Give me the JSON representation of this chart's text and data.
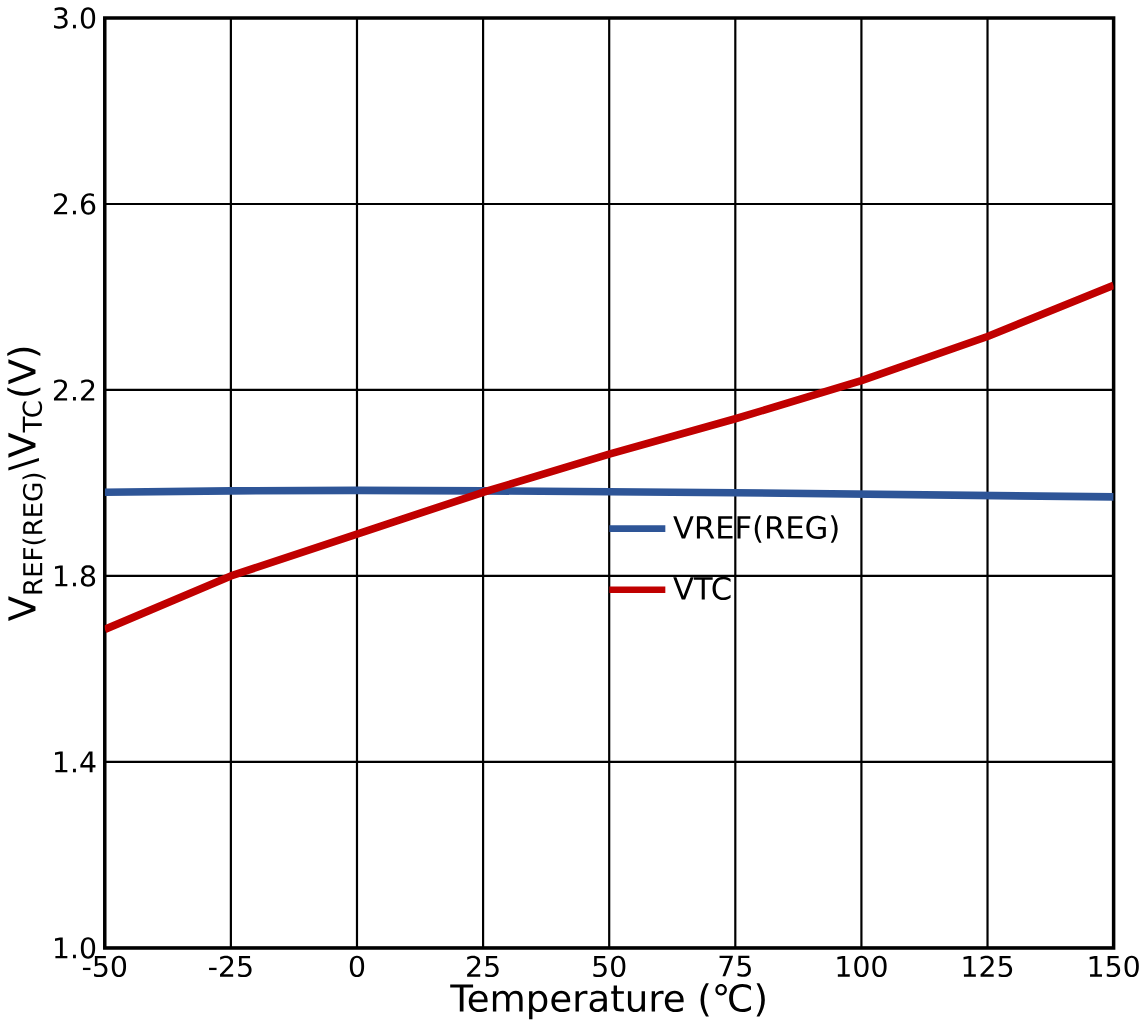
{
  "chart_data": {
    "type": "line",
    "xlabel": "Temperature (℃)",
    "ylabel": "V$_{REF(REG)}$\\V$_{TC}$(V)",
    "x": [
      -50,
      -25,
      0,
      25,
      50,
      75,
      100,
      125,
      150
    ],
    "series": [
      {
        "name": "VREF(REG)",
        "color": "#2e5597",
        "values": [
          1.98,
          1.983,
          1.984,
          1.983,
          1.981,
          1.979,
          1.976,
          1.973,
          1.97
        ]
      },
      {
        "name": "VTC",
        "color": "#c00000",
        "values": [
          1.685,
          1.8,
          1.89,
          1.98,
          2.062,
          2.138,
          2.22,
          2.315,
          2.425
        ]
      }
    ],
    "xlim": [
      -50,
      150
    ],
    "xticks": [
      -50,
      -25,
      0,
      25,
      50,
      75,
      100,
      125,
      150
    ],
    "ylim": [
      1.0,
      3.0
    ],
    "yticks": [
      {
        "value": 1.0,
        "label": "1.0"
      },
      1.4,
      1.8,
      2.2,
      2.6,
      {
        "value": 3.0,
        "label": "3.0"
      }
    ],
    "grid": true,
    "legend": "center right",
    "marker": "none",
    "line_style": "solid"
  }
}
